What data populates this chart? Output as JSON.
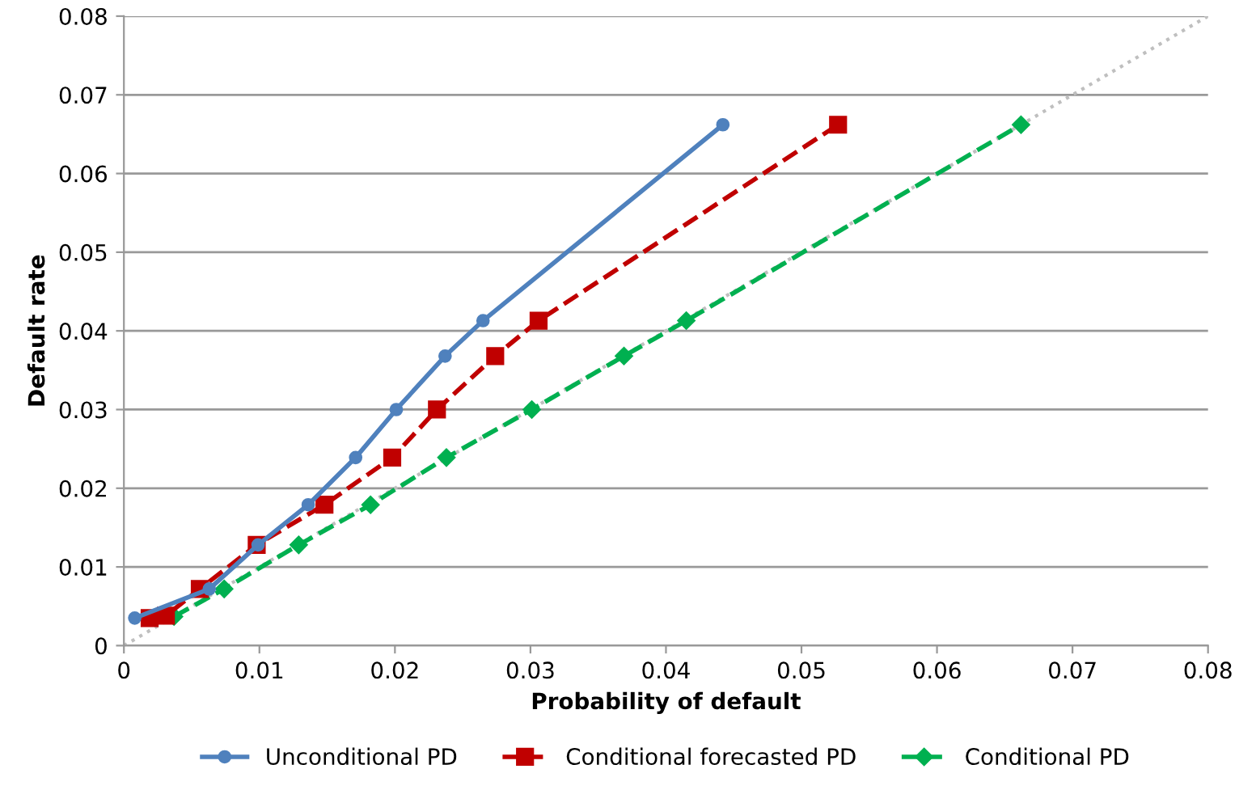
{
  "chart_data": {
    "type": "line",
    "xlabel": "Probability of default",
    "ylabel": "Default rate",
    "xlim": [
      0,
      0.08
    ],
    "ylim": [
      0,
      0.08
    ],
    "xticks": [
      0,
      0.01,
      0.02,
      0.03,
      0.04,
      0.05,
      0.06,
      0.07,
      0.08
    ],
    "yticks": [
      0,
      0.01,
      0.02,
      0.03,
      0.04,
      0.05,
      0.06,
      0.07,
      0.08
    ],
    "grid": "y",
    "legend": "bottom",
    "series": [
      {
        "name": "Unconditional PD",
        "color": "#4f81bd",
        "marker": "circle",
        "line_style": "solid",
        "x": [
          0.0008,
          0.0063,
          0.0099,
          0.0136,
          0.0171,
          0.0201,
          0.0237,
          0.0265,
          0.0442
        ],
        "values": [
          0.0035,
          0.0072,
          0.0128,
          0.0179,
          0.0239,
          0.03,
          0.0368,
          0.0413,
          0.0662
        ]
      },
      {
        "name": "Conditional forecasted PD",
        "color": "#c00000",
        "marker": "square",
        "line_style": "dashed",
        "x": [
          0.0019,
          0.0031,
          0.0056,
          0.0098,
          0.0148,
          0.0198,
          0.0231,
          0.0274,
          0.0306,
          0.0527
        ],
        "values": [
          0.0035,
          0.0038,
          0.0072,
          0.0128,
          0.0179,
          0.0239,
          0.03,
          0.0368,
          0.0413,
          0.0662
        ]
      },
      {
        "name": "Conditional PD",
        "color": "#00b050",
        "marker": "diamond",
        "line_style": "dashed",
        "x": [
          0.0037,
          0.0074,
          0.0129,
          0.0182,
          0.0238,
          0.0301,
          0.0369,
          0.0415,
          0.0662
        ],
        "values": [
          0.0037,
          0.0072,
          0.0128,
          0.0179,
          0.0239,
          0.03,
          0.0368,
          0.0413,
          0.0662
        ]
      },
      {
        "color": "#bfbfbf",
        "marker": "none",
        "line_style": "dotted",
        "x": [
          0,
          0.08
        ],
        "values": [
          0,
          0.08
        ]
      }
    ]
  }
}
